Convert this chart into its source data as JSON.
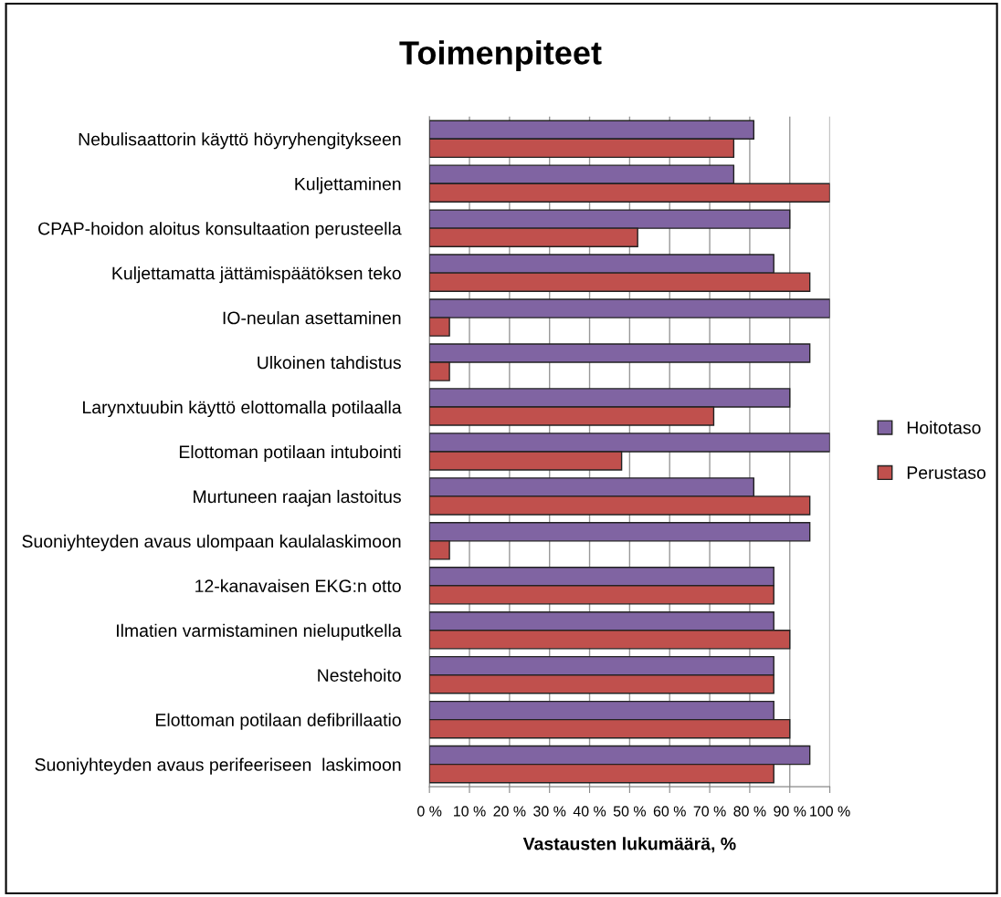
{
  "chart_data": {
    "type": "bar",
    "orientation": "horizontal",
    "title": "Toimenpiteet",
    "xlabel": "Vastausten lukumäärä, %",
    "categories": [
      "Nebulisaattorin käyttö höyryhengitykseen",
      "Kuljettaminen",
      "CPAP-hoidon aloitus konsultaation perusteella",
      "Kuljettamatta jättämispäätöksen teko",
      "IO-neulan asettaminen",
      "Ulkoinen tahdistus",
      "Larynxtuubin käyttö elottomalla potilaalla",
      "Elottoman potilaan intubointi",
      "Murtuneen raajan lastoitus",
      "Suoniyhteyden avaus ulompaan kaulalaskimoon",
      "12-kanavaisen EKG:n otto",
      "Ilmatien varmistaminen nieluputkella",
      "Nestehoito",
      "Elottoman potilaan defibrillaatio",
      "Suoniyhteyden avaus perifeeriseen  laskimoon"
    ],
    "series": [
      {
        "name": "Hoitotaso",
        "color": "#8064a2",
        "values": [
          81,
          76,
          90,
          86,
          100,
          95,
          90,
          100,
          81,
          95,
          86,
          86,
          86,
          86,
          95
        ]
      },
      {
        "name": "Perustaso",
        "color": "#c0504d",
        "values": [
          76,
          100,
          52,
          95,
          5,
          5,
          71,
          48,
          95,
          5,
          86,
          90,
          86,
          90,
          86
        ]
      }
    ],
    "xlim": [
      0,
      100
    ],
    "xticks": [
      {
        "value": 0,
        "label": "0 %"
      },
      {
        "value": 10,
        "label": "10 %"
      },
      {
        "value": 20,
        "label": "20 %"
      },
      {
        "value": 30,
        "label": "30 %"
      },
      {
        "value": 40,
        "label": "40 %"
      },
      {
        "value": 50,
        "label": "50 %"
      },
      {
        "value": 60,
        "label": "60 %"
      },
      {
        "value": 70,
        "label": "70 %"
      },
      {
        "value": 80,
        "label": "80 %"
      },
      {
        "value": 90,
        "label": "90 %"
      },
      {
        "value": 100,
        "label": "100 %"
      }
    ],
    "grid": "x",
    "legend": "right"
  }
}
